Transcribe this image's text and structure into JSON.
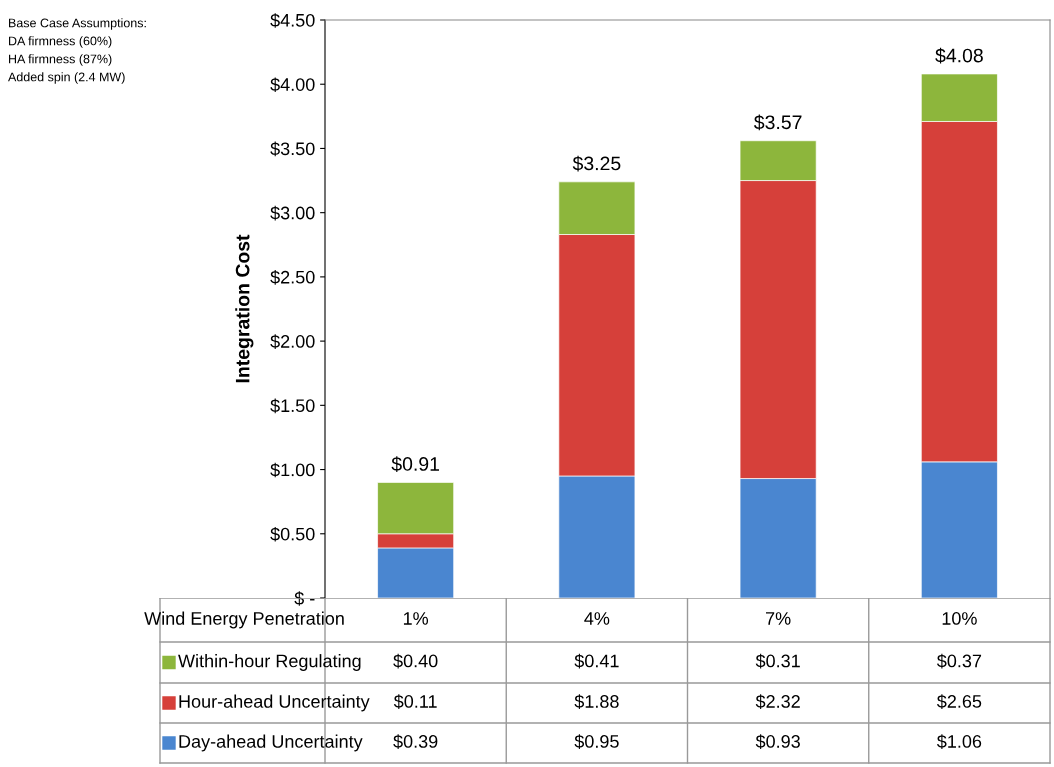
{
  "chart_data": {
    "type": "bar",
    "stacked": true,
    "ylabel": "Integration Cost",
    "xlabel": "Wind Energy Penetration",
    "categories": [
      "1%",
      "4%",
      "7%",
      "10%"
    ],
    "series": [
      {
        "name": "Day-ahead Uncertainty",
        "color": "#4a86d0",
        "values": [
          0.39,
          0.95,
          0.93,
          1.06
        ],
        "value_labels": [
          "$0.39",
          "$0.95",
          "$0.93",
          "$1.06"
        ]
      },
      {
        "name": "Hour-ahead Uncertainty",
        "color": "#d6403a",
        "values": [
          0.11,
          1.88,
          2.32,
          2.65
        ],
        "value_labels": [
          "$0.11",
          "$1.88",
          "$2.32",
          "$2.65"
        ]
      },
      {
        "name": "Within-hour Regulating",
        "color": "#8db63c",
        "values": [
          0.4,
          0.41,
          0.31,
          0.37
        ],
        "value_labels": [
          "$0.40",
          "$0.41",
          "$0.31",
          "$0.37"
        ]
      }
    ],
    "totals": [
      "$0.91",
      "$3.25",
      "$3.57",
      "$4.08"
    ],
    "legend": "bottom",
    "ylim": [
      0,
      4.5
    ],
    "yticks": [
      {
        "value": 0,
        "label": "$ -"
      },
      {
        "value": 0.5,
        "label": "$0.50"
      },
      {
        "value": 1.0,
        "label": "$1.00"
      },
      {
        "value": 1.5,
        "label": "$1.50"
      },
      {
        "value": 2.0,
        "label": "$2.00"
      },
      {
        "value": 2.5,
        "label": "$2.50"
      },
      {
        "value": 3.0,
        "label": "$3.00"
      },
      {
        "value": 3.5,
        "label": "$3.50"
      },
      {
        "value": 4.0,
        "label": "$4.00"
      },
      {
        "value": 4.5,
        "label": "$4.50"
      }
    ],
    "grid": false,
    "annotations": [
      "Base Case Assumptions:",
      "DA firmness (60%)",
      "HA firmness (87%)",
      "Added spin (2.4 MW)"
    ]
  }
}
